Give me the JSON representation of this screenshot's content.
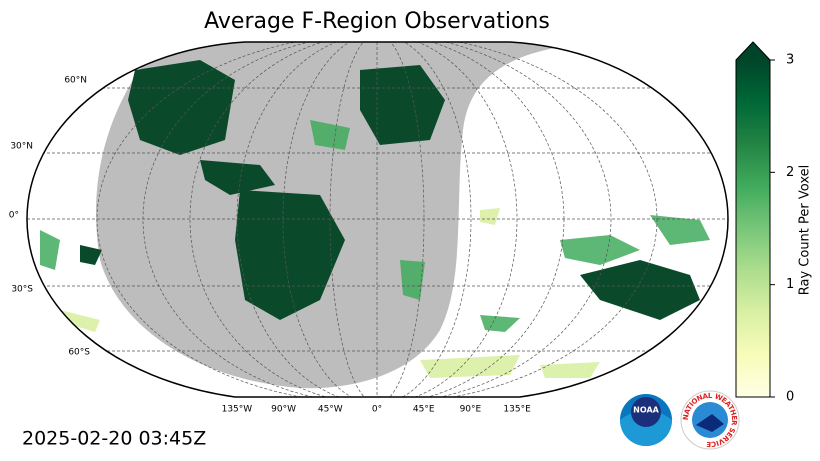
{
  "title": "Average F-Region Observations",
  "timestamp": "2025-02-20 03:45Z",
  "map": {
    "lat_labels": [
      "60°N",
      "30°N",
      "0°",
      "30°S",
      "60°S"
    ],
    "lon_labels": [
      "135°W",
      "90°W",
      "45°W",
      "0°",
      "45°E",
      "90°E",
      "135°E"
    ]
  },
  "colorbar": {
    "label": "Ray Count Per Voxel",
    "lim": [
      0,
      3
    ],
    "ticks": [
      0,
      1,
      2,
      3
    ],
    "colors": [
      "#ffffe5",
      "#f7fcb9",
      "#d9f0a3",
      "#addd8e",
      "#78c679",
      "#41ab5d",
      "#238443",
      "#006837",
      "#004529"
    ]
  },
  "logos": {
    "noaa": "NOAA",
    "nws": "NATIONAL WEATHER SERVICE"
  }
}
